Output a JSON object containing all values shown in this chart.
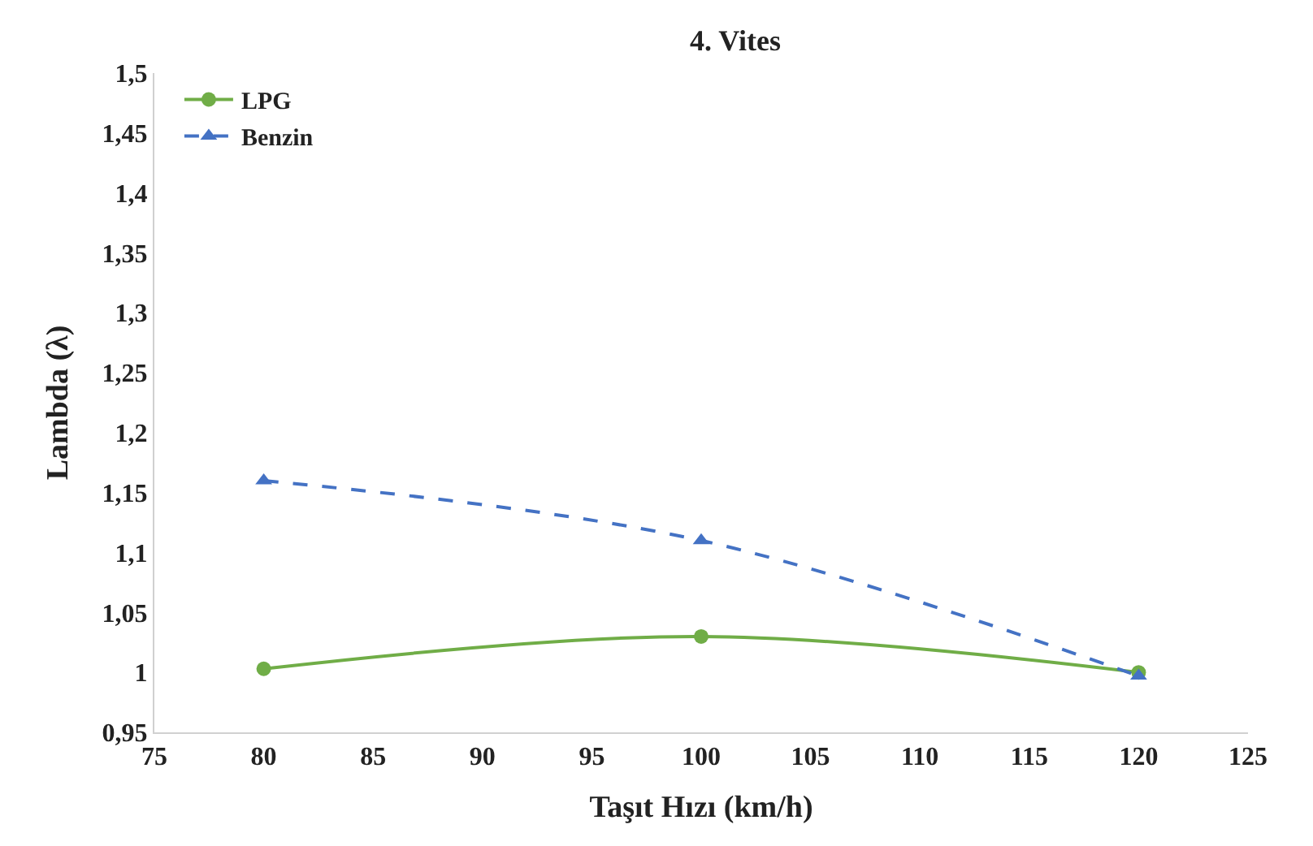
{
  "chart_data": {
    "type": "line",
    "title": "4. Vites",
    "xlabel": "Taşıt Hızı (km/h)",
    "ylabel": "Lambda (λ)",
    "x": [
      80,
      100,
      120
    ],
    "series": [
      {
        "name": "LPG",
        "color": "#70ad47",
        "values": [
          1.003,
          1.03,
          1.0
        ],
        "marker": "circle",
        "line_style": "solid"
      },
      {
        "name": "Benzin",
        "color": "#4472c4",
        "values": [
          1.16,
          1.11,
          0.997
        ],
        "marker": "triangle",
        "line_style": "dashed"
      }
    ],
    "xlim": [
      75,
      125
    ],
    "xticks": [
      75,
      80,
      85,
      90,
      95,
      100,
      105,
      110,
      115,
      120,
      125
    ],
    "ylim": [
      0.95,
      1.5
    ],
    "yticks": [
      {
        "value": 0.95,
        "label": "0,95"
      },
      {
        "value": 1,
        "label": "1"
      },
      {
        "value": 1.05,
        "label": "1,05"
      },
      {
        "value": 1.1,
        "label": "1,1"
      },
      {
        "value": 1.15,
        "label": "1,15"
      },
      {
        "value": 1.2,
        "label": "1,2"
      },
      {
        "value": 1.25,
        "label": "1,25"
      },
      {
        "value": 1.3,
        "label": "1,3"
      },
      {
        "value": 1.35,
        "label": "1,35"
      },
      {
        "value": 1.4,
        "label": "1,4"
      },
      {
        "value": 1.45,
        "label": "1,45"
      },
      {
        "value": 1.5,
        "label": "1,5"
      }
    ],
    "legend": "top left"
  }
}
